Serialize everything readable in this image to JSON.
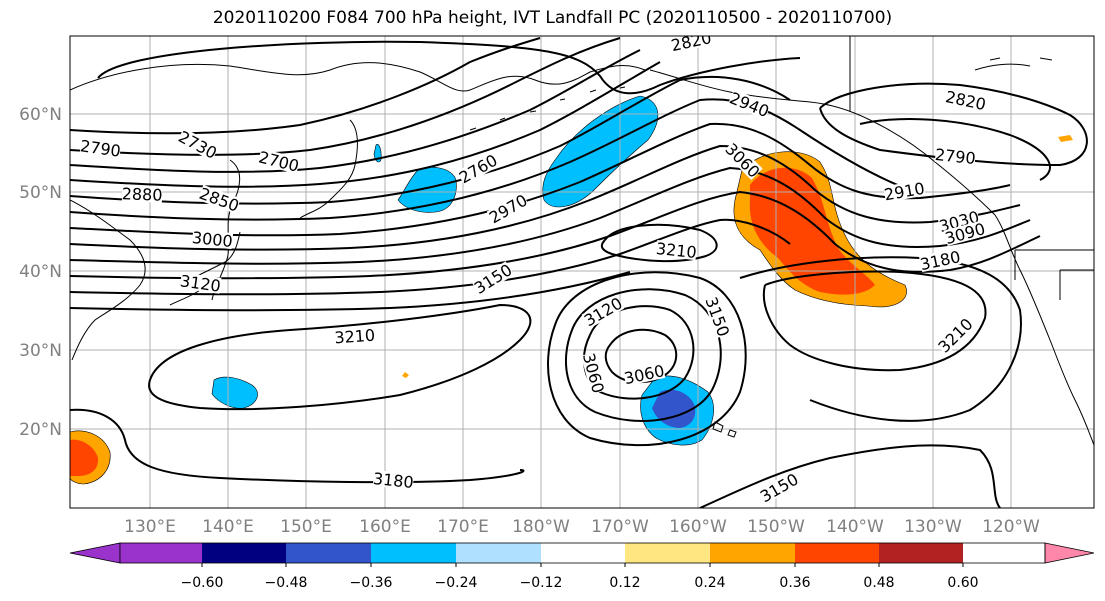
{
  "title": "2020110200 F084 700 hPa height, IVT Landfall PC (2020110500 - 2020110700)",
  "lat_labels": [
    "60°N",
    "50°N",
    "40°N",
    "30°N",
    "20°N"
  ],
  "lon_labels": [
    "130°E",
    "140°E",
    "150°E",
    "160°E",
    "170°E",
    "180°W",
    "170°W",
    "160°W",
    "150°W",
    "140°W",
    "130°W",
    "120°W"
  ],
  "colorbar": {
    "colors": [
      "#9933cc",
      "#000080",
      "#3355cc",
      "#00bfff",
      "#b0e0ff",
      "#ffffff",
      "#ffe680",
      "#ffa500",
      "#ff4500",
      "#b22222",
      "#ff88aa"
    ],
    "tick_labels": [
      "−0.60",
      "−0.48",
      "−0.36",
      "−0.24",
      "−0.12",
      "0.12",
      "0.24",
      "0.36",
      "0.48",
      "0.60"
    ]
  },
  "contour_labels": [
    "2820",
    "2820",
    "2940",
    "2790",
    "2730",
    "2700",
    "2790",
    "2760",
    "3060",
    "2880",
    "2850",
    "2910",
    "2970",
    "3030",
    "3090",
    "3000",
    "3210",
    "3180",
    "3150",
    "3120",
    "3150",
    "3120",
    "3210",
    "3060",
    "3060",
    "3210",
    "3180",
    "3150"
  ]
}
